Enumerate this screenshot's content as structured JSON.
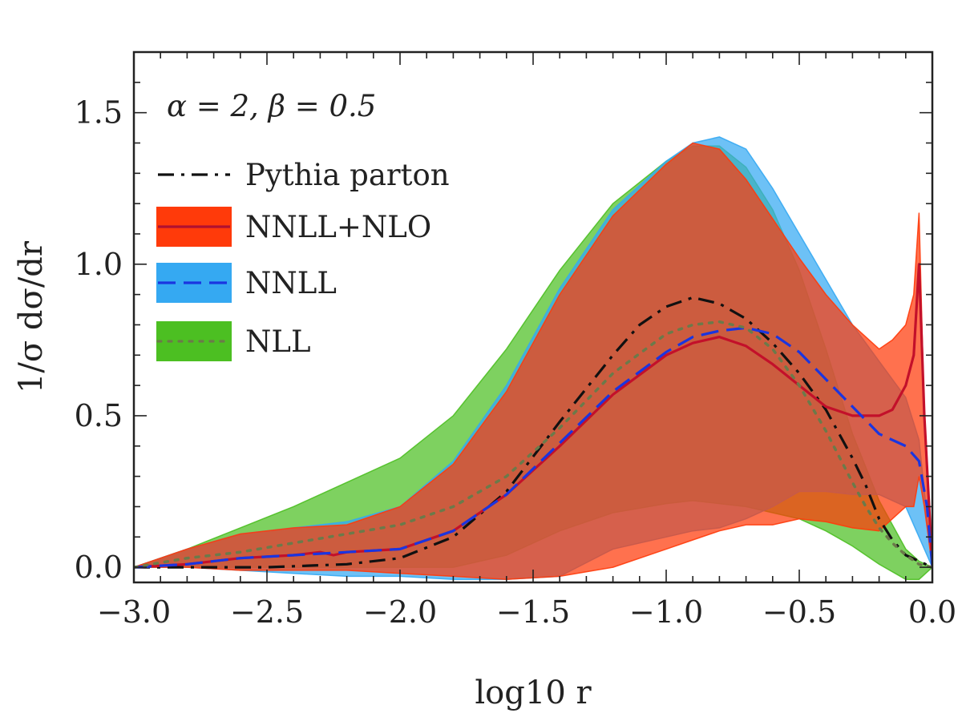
{
  "chart_data": {
    "type": "line",
    "title": "",
    "xlabel": "log10 r",
    "ylabel": "1/σ dσ/dr",
    "xlim": [
      -3.0,
      0.0
    ],
    "ylim": [
      -0.05,
      1.7
    ],
    "xticks": [
      -3.0,
      -2.5,
      -2.0,
      -1.5,
      -1.0,
      -0.5,
      0.0
    ],
    "xtick_labels": [
      "−3.0",
      "−2.5",
      "−2.0",
      "−1.5",
      "−1.0",
      "−0.5",
      "0.0"
    ],
    "yticks": [
      0.0,
      0.5,
      1.0,
      1.5
    ],
    "ytick_labels": [
      "0.0",
      "0.5",
      "1.0",
      "1.5"
    ],
    "grid": false,
    "legend_position": "top-left",
    "legend_title": "α = 2, β = 0.5",
    "bands": [
      {
        "name": "NLL",
        "color": "#4cbf22",
        "x": [
          -3.0,
          -2.8,
          -2.6,
          -2.4,
          -2.2,
          -2.0,
          -1.8,
          -1.6,
          -1.4,
          -1.2,
          -1.0,
          -0.9,
          -0.8,
          -0.7,
          -0.6,
          -0.5,
          -0.4,
          -0.3,
          -0.2,
          -0.1,
          -0.05,
          0.0
        ],
        "upper": [
          0.0,
          0.06,
          0.13,
          0.2,
          0.28,
          0.36,
          0.5,
          0.72,
          0.98,
          1.2,
          1.34,
          1.39,
          1.39,
          1.32,
          1.18,
          0.98,
          0.72,
          0.44,
          0.22,
          0.06,
          0.02,
          0.0
        ],
        "lower": [
          0.0,
          0.0,
          0.0,
          0.0,
          0.0,
          0.0,
          0.0,
          0.04,
          0.12,
          0.18,
          0.21,
          0.22,
          0.21,
          0.2,
          0.18,
          0.16,
          0.12,
          0.07,
          0.01,
          -0.04,
          -0.04,
          0.0
        ]
      },
      {
        "name": "NNLL",
        "color": "#35a9f2",
        "x": [
          -3.0,
          -2.8,
          -2.6,
          -2.4,
          -2.2,
          -2.0,
          -1.8,
          -1.6,
          -1.4,
          -1.2,
          -1.0,
          -0.9,
          -0.8,
          -0.7,
          -0.6,
          -0.5,
          -0.4,
          -0.3,
          -0.2,
          -0.1,
          -0.05,
          0.0
        ],
        "upper": [
          0.0,
          0.06,
          0.11,
          0.13,
          0.15,
          0.2,
          0.35,
          0.6,
          0.92,
          1.18,
          1.34,
          1.4,
          1.42,
          1.38,
          1.25,
          1.1,
          0.95,
          0.8,
          0.68,
          0.56,
          0.42,
          0.0
        ],
        "lower": [
          0.0,
          0.0,
          -0.01,
          -0.02,
          -0.03,
          -0.03,
          -0.04,
          -0.04,
          -0.03,
          0.06,
          0.1,
          0.12,
          0.13,
          0.16,
          0.2,
          0.25,
          0.25,
          0.24,
          0.24,
          0.2,
          0.1,
          0.0
        ]
      },
      {
        "name": "NNLL+NLO",
        "color": "#ff3a0a",
        "x": [
          -3.0,
          -2.8,
          -2.6,
          -2.4,
          -2.2,
          -2.0,
          -1.8,
          -1.6,
          -1.4,
          -1.2,
          -1.0,
          -0.9,
          -0.8,
          -0.7,
          -0.6,
          -0.5,
          -0.4,
          -0.3,
          -0.2,
          -0.15,
          -0.1,
          -0.07,
          -0.05,
          -0.03,
          0.0
        ],
        "upper": [
          0.0,
          0.06,
          0.11,
          0.13,
          0.14,
          0.2,
          0.34,
          0.58,
          0.9,
          1.16,
          1.33,
          1.4,
          1.38,
          1.28,
          1.15,
          1.02,
          0.9,
          0.8,
          0.72,
          0.75,
          0.8,
          0.9,
          1.17,
          0.5,
          0.0
        ],
        "lower": [
          0.0,
          0.0,
          -0.01,
          -0.01,
          -0.01,
          -0.02,
          -0.03,
          -0.04,
          -0.03,
          0.0,
          0.06,
          0.09,
          0.12,
          0.14,
          0.14,
          0.16,
          0.15,
          0.13,
          0.12,
          0.16,
          0.2,
          0.2,
          0.3,
          0.2,
          0.0
        ]
      }
    ],
    "series": [
      {
        "name": "Pythia parton",
        "style": "dash-dot",
        "color": "#111111",
        "x": [
          -3.0,
          -2.5,
          -2.2,
          -2.0,
          -1.8,
          -1.6,
          -1.4,
          -1.2,
          -1.1,
          -1.0,
          -0.9,
          -0.8,
          -0.7,
          -0.6,
          -0.5,
          -0.4,
          -0.3,
          -0.25,
          -0.2,
          -0.15,
          -0.1,
          -0.05,
          0.0
        ],
        "y": [
          0.0,
          0.0,
          0.01,
          0.03,
          0.1,
          0.25,
          0.48,
          0.7,
          0.8,
          0.86,
          0.89,
          0.87,
          0.82,
          0.74,
          0.64,
          0.52,
          0.36,
          0.27,
          0.16,
          0.09,
          0.04,
          0.02,
          0.0
        ]
      },
      {
        "name": "NNLL+NLO",
        "style": "solid",
        "color": "#c3102a",
        "x": [
          -3.0,
          -2.8,
          -2.6,
          -2.4,
          -2.3,
          -2.25,
          -2.2,
          -2.0,
          -1.8,
          -1.6,
          -1.4,
          -1.2,
          -1.0,
          -0.9,
          -0.8,
          -0.7,
          -0.6,
          -0.5,
          -0.4,
          -0.3,
          -0.2,
          -0.15,
          -0.1,
          -0.07,
          -0.05,
          -0.03,
          0.0
        ],
        "y": [
          0.0,
          0.01,
          0.03,
          0.04,
          0.05,
          0.04,
          0.05,
          0.06,
          0.12,
          0.24,
          0.4,
          0.57,
          0.7,
          0.74,
          0.76,
          0.73,
          0.67,
          0.6,
          0.53,
          0.5,
          0.5,
          0.52,
          0.6,
          0.7,
          1.0,
          0.5,
          0.0
        ]
      },
      {
        "name": "NNLL",
        "style": "dashed",
        "color": "#1a35e0",
        "x": [
          -3.0,
          -2.8,
          -2.6,
          -2.4,
          -2.2,
          -2.0,
          -1.8,
          -1.6,
          -1.4,
          -1.2,
          -1.0,
          -0.9,
          -0.8,
          -0.7,
          -0.6,
          -0.5,
          -0.4,
          -0.3,
          -0.2,
          -0.1,
          -0.05,
          -0.02,
          0.0
        ],
        "y": [
          0.0,
          0.01,
          0.03,
          0.04,
          0.05,
          0.06,
          0.12,
          0.24,
          0.41,
          0.58,
          0.71,
          0.76,
          0.78,
          0.79,
          0.77,
          0.71,
          0.62,
          0.53,
          0.44,
          0.4,
          0.35,
          0.2,
          0.0
        ]
      },
      {
        "name": "NLL",
        "style": "dotted",
        "color": "#6b7a4a",
        "x": [
          -3.0,
          -2.8,
          -2.6,
          -2.4,
          -2.2,
          -2.0,
          -1.8,
          -1.6,
          -1.4,
          -1.2,
          -1.0,
          -0.9,
          -0.8,
          -0.7,
          -0.6,
          -0.5,
          -0.4,
          -0.3,
          -0.25,
          -0.2,
          -0.15,
          -0.1,
          -0.05,
          0.0
        ],
        "y": [
          0.0,
          0.03,
          0.05,
          0.08,
          0.11,
          0.14,
          0.2,
          0.3,
          0.46,
          0.64,
          0.77,
          0.8,
          0.81,
          0.79,
          0.72,
          0.6,
          0.45,
          0.28,
          0.2,
          0.13,
          0.08,
          0.04,
          0.01,
          0.0
        ]
      }
    ],
    "legend": [
      {
        "label": "Pythia parton",
        "kind": "line",
        "style": "dash-dot",
        "line_color": "#111111"
      },
      {
        "label": "NNLL+NLO",
        "kind": "band",
        "fill": "#ff3a0a",
        "style": "solid",
        "line_color": "#b01030"
      },
      {
        "label": "NNLL",
        "kind": "band",
        "fill": "#35a9f2",
        "style": "dashed",
        "line_color": "#1a35e0"
      },
      {
        "label": "NLL",
        "kind": "band",
        "fill": "#4cbf22",
        "style": "dotted",
        "line_color": "#6b7a4a"
      }
    ]
  }
}
